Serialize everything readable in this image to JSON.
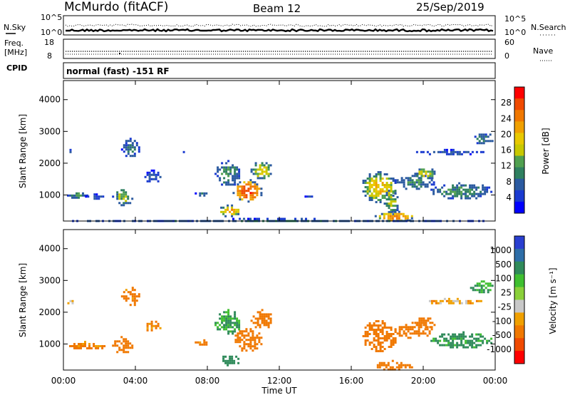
{
  "header": {
    "station": "McMurdo (fitACF)",
    "beam": "Beam 12",
    "date": "25/Sep/2019"
  },
  "top_panels": {
    "nsky_label": "N.Sky",
    "nsky_ticks": [
      "10^5",
      "10^0"
    ],
    "nsearch_label": "N.Search",
    "nsearch_ticks": [
      "10^5",
      "10^0"
    ],
    "freq_label": "Freq.",
    "freq_unit": "[MHz]",
    "freq_ticks": [
      "18",
      "8"
    ],
    "nave_label": "Nave",
    "nave_ticks": [
      "60",
      "0"
    ],
    "cpid_label": "CPID",
    "cpid_text": "normal (fast) -151 RF"
  },
  "chart_data": [
    {
      "type": "heatmap",
      "name": "power",
      "ylabel": "Slant Range [km]",
      "yticks": [
        "4000",
        "3000",
        "2000",
        "1000"
      ],
      "ylim": [
        180,
        4600
      ],
      "xlim": [
        0,
        24
      ],
      "colorbar_label": "Power [dB]",
      "colorbar_ticks": [
        "28",
        "24",
        "20",
        "16",
        "12",
        "8",
        "4"
      ],
      "colorbar_colors": [
        "#ff0000",
        "#f04a00",
        "#f07800",
        "#f0a000",
        "#e8c800",
        "#c8c800",
        "#50a050",
        "#2f8060",
        "#2b5aa0",
        "#1a3ad0",
        "#0000ff"
      ],
      "regions": [
        {
          "x0": 0.1,
          "x1": 0.5,
          "y0": 2250,
          "y1": 2450,
          "level": 8
        },
        {
          "x0": 0.2,
          "x1": 1.3,
          "y0": 900,
          "y1": 1150,
          "level": 12
        },
        {
          "x0": 1.2,
          "x1": 2.3,
          "y0": 900,
          "y1": 1050,
          "level": 8
        },
        {
          "x0": 2.7,
          "x1": 3.8,
          "y0": 700,
          "y1": 1250,
          "level": 14
        },
        {
          "x0": 3.2,
          "x1": 4.2,
          "y0": 2200,
          "y1": 2800,
          "level": 10
        },
        {
          "x0": 4.5,
          "x1": 5.4,
          "y0": 1400,
          "y1": 1800,
          "level": 8
        },
        {
          "x0": 6.4,
          "x1": 6.8,
          "y0": 2300,
          "y1": 2450,
          "level": 8
        },
        {
          "x0": 7.3,
          "x1": 8.1,
          "y0": 1000,
          "y1": 1150,
          "level": 10
        },
        {
          "x0": 8.4,
          "x1": 9.8,
          "y0": 1300,
          "y1": 2100,
          "level": 12
        },
        {
          "x0": 9.4,
          "x1": 11.0,
          "y0": 800,
          "y1": 1500,
          "level": 26
        },
        {
          "x0": 10.4,
          "x1": 11.6,
          "y0": 1500,
          "y1": 2100,
          "level": 16
        },
        {
          "x0": 8.6,
          "x1": 9.8,
          "y0": 350,
          "y1": 700,
          "level": 20
        },
        {
          "x0": 13.4,
          "x1": 13.8,
          "y0": 900,
          "y1": 1050,
          "level": 8
        },
        {
          "x0": 16.5,
          "x1": 18.5,
          "y0": 800,
          "y1": 1750,
          "level": 18
        },
        {
          "x0": 17.8,
          "x1": 18.6,
          "y0": 400,
          "y1": 1300,
          "level": 14
        },
        {
          "x0": 17.3,
          "x1": 19.5,
          "y0": 180,
          "y1": 500,
          "level": 22
        },
        {
          "x0": 18.4,
          "x1": 20.6,
          "y0": 1200,
          "y1": 1700,
          "level": 12
        },
        {
          "x0": 19.5,
          "x1": 20.6,
          "y0": 1500,
          "y1": 1900,
          "level": 16
        },
        {
          "x0": 20.4,
          "x1": 23.8,
          "y0": 900,
          "y1": 1400,
          "level": 12
        },
        {
          "x0": 19.6,
          "x1": 23.4,
          "y0": 2300,
          "y1": 2450,
          "level": 8
        },
        {
          "x0": 22.6,
          "x1": 23.9,
          "y0": 2600,
          "y1": 3000,
          "level": 10
        },
        {
          "x0": 0.0,
          "x1": 24.0,
          "y0": 180,
          "y1": 280,
          "level": 10
        }
      ]
    },
    {
      "type": "heatmap",
      "name": "velocity",
      "ylabel": "Slant Range [km]",
      "yticks": [
        "4000",
        "3000",
        "2000",
        "1000"
      ],
      "ylim": [
        180,
        4600
      ],
      "xlim": [
        0,
        24
      ],
      "xticks": [
        "00:00",
        "04:00",
        "08:00",
        "12:00",
        "16:00",
        "20:00",
        "00:00"
      ],
      "xlabel": "Time UT",
      "colorbar_label": "Velocity [m s⁻¹]",
      "colorbar_ticks": [
        "1000",
        "500",
        "100",
        "25",
        "-25",
        "-100",
        "-500",
        "-1000"
      ],
      "colorbar_colors": [
        "#2a3fd0",
        "#2e6ea8",
        "#2f8a5a",
        "#3fbf30",
        "#8ad03a",
        "#c8c8c8",
        "#f0a000",
        "#f07800",
        "#f04a00",
        "#ff0000"
      ],
      "regions": [
        {
          "x0": 0.2,
          "x1": 2.3,
          "y0": 850,
          "y1": 1100,
          "v": -150
        },
        {
          "x0": 2.7,
          "x1": 3.8,
          "y0": 700,
          "y1": 1250,
          "v": -300
        },
        {
          "x0": 0.1,
          "x1": 0.5,
          "y0": 2250,
          "y1": 2450,
          "v": 10
        },
        {
          "x0": 3.2,
          "x1": 4.2,
          "y0": 2200,
          "y1": 2800,
          "v": -150
        },
        {
          "x0": 4.5,
          "x1": 5.4,
          "y0": 1400,
          "y1": 1800,
          "v": -150
        },
        {
          "x0": 7.3,
          "x1": 8.1,
          "y0": 1000,
          "y1": 1150,
          "v": -150
        },
        {
          "x0": 8.4,
          "x1": 9.8,
          "y0": 1300,
          "y1": 2100,
          "v": 150
        },
        {
          "x0": 9.4,
          "x1": 11.0,
          "y0": 800,
          "y1": 1500,
          "v": -250
        },
        {
          "x0": 10.4,
          "x1": 11.6,
          "y0": 1500,
          "y1": 2100,
          "v": -250
        },
        {
          "x0": 8.6,
          "x1": 9.8,
          "y0": 350,
          "y1": 700,
          "v": 300
        },
        {
          "x0": 16.5,
          "x1": 18.5,
          "y0": 800,
          "y1": 1750,
          "v": -250
        },
        {
          "x0": 18.4,
          "x1": 20.6,
          "y0": 1200,
          "y1": 1700,
          "v": -200
        },
        {
          "x0": 19.5,
          "x1": 20.6,
          "y0": 1500,
          "y1": 1900,
          "v": -200
        },
        {
          "x0": 20.4,
          "x1": 23.8,
          "y0": 900,
          "y1": 1400,
          "v": 200
        },
        {
          "x0": 17.3,
          "x1": 19.5,
          "y0": 180,
          "y1": 500,
          "v": -200
        },
        {
          "x0": 19.6,
          "x1": 23.4,
          "y0": 2300,
          "y1": 2450,
          "v": -60
        },
        {
          "x0": 22.6,
          "x1": 23.9,
          "y0": 2600,
          "y1": 3000,
          "v": 150
        }
      ]
    }
  ]
}
